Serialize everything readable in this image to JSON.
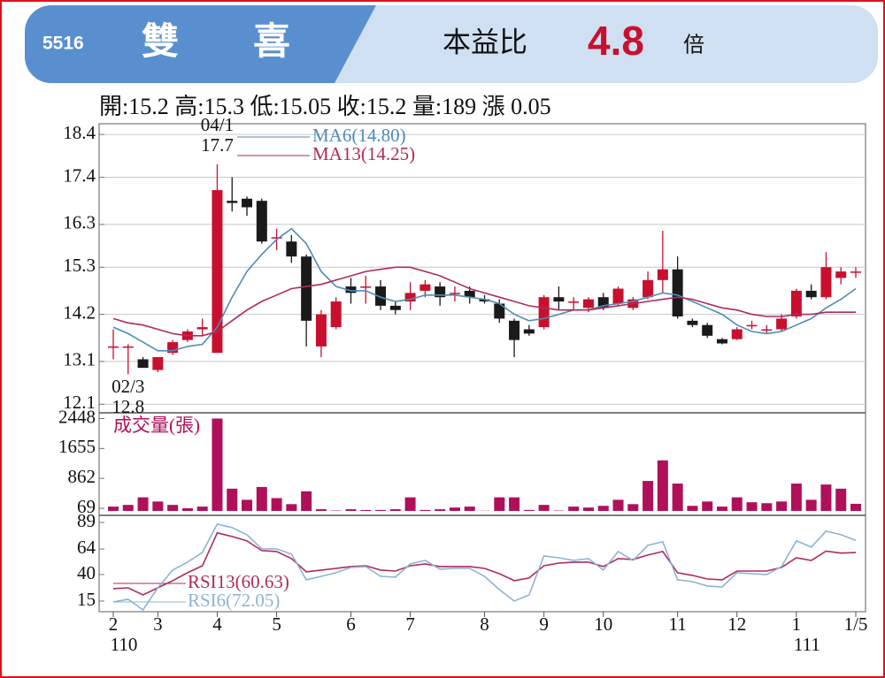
{
  "header": {
    "code": "5516",
    "name": "雙　　喜",
    "pe_label": "本益比",
    "pe_value": "4.8",
    "pe_unit": "倍"
  },
  "summary": "開:15.2 高:15.3 低:15.05 收:15.2 量:189 漲 0.05",
  "chart_data": [
    {
      "type": "candlestick",
      "up_color": "#c8102e",
      "down_color": "#1a1a1a",
      "open": [
        13.45,
        13.45,
        13.15,
        12.9,
        13.3,
        13.6,
        13.85,
        13.3,
        16.85,
        16.9,
        16.85,
        16.0,
        15.9,
        15.55,
        13.45,
        13.9,
        14.85,
        14.85,
        14.85,
        14.4,
        14.5,
        14.75,
        14.85,
        14.7,
        14.75,
        14.55,
        14.45,
        14.05,
        13.85,
        13.9,
        14.6,
        14.5,
        14.35,
        14.6,
        14.45,
        14.35,
        14.6,
        15.0,
        15.25,
        14.05,
        13.95,
        13.62,
        13.62,
        13.95,
        13.85,
        13.85,
        14.15,
        14.75,
        14.6,
        15.05,
        15.2
      ],
      "high": [
        13.85,
        13.5,
        13.2,
        13.2,
        13.6,
        13.85,
        14.1,
        17.7,
        17.4,
        16.95,
        16.9,
        16.2,
        16.05,
        15.6,
        14.3,
        14.6,
        15.05,
        15.1,
        15.0,
        14.5,
        14.95,
        15.0,
        14.95,
        14.85,
        14.85,
        14.65,
        14.55,
        14.1,
        13.95,
        14.65,
        14.85,
        14.6,
        14.6,
        14.7,
        14.85,
        14.6,
        15.2,
        16.15,
        15.55,
        14.1,
        14.0,
        13.65,
        13.9,
        14.05,
        13.95,
        14.2,
        14.8,
        14.9,
        15.65,
        15.3,
        15.3
      ],
      "low": [
        13.15,
        12.8,
        12.95,
        12.85,
        13.25,
        13.55,
        13.7,
        13.3,
        16.6,
        16.5,
        15.85,
        15.7,
        15.4,
        13.45,
        13.2,
        13.85,
        14.45,
        14.45,
        14.3,
        14.2,
        14.3,
        14.6,
        14.4,
        14.5,
        14.45,
        14.45,
        14.0,
        13.2,
        13.7,
        13.85,
        14.3,
        14.3,
        14.25,
        14.3,
        14.4,
        14.3,
        14.55,
        14.7,
        14.1,
        13.9,
        13.65,
        13.5,
        13.6,
        13.85,
        13.75,
        13.8,
        14.1,
        14.55,
        14.55,
        14.9,
        15.05
      ],
      "close": [
        13.45,
        13.45,
        12.95,
        13.2,
        13.55,
        13.8,
        13.9,
        17.1,
        16.8,
        16.7,
        15.9,
        16.0,
        15.55,
        14.05,
        14.2,
        14.5,
        14.7,
        14.85,
        14.4,
        14.3,
        14.7,
        14.9,
        14.6,
        14.7,
        14.6,
        14.5,
        14.1,
        13.6,
        13.75,
        14.6,
        14.5,
        14.5,
        14.55,
        14.35,
        14.8,
        14.55,
        15.0,
        15.25,
        14.15,
        13.95,
        13.7,
        13.52,
        13.85,
        13.95,
        13.85,
        14.1,
        14.75,
        14.6,
        15.3,
        15.2,
        15.2
      ],
      "series": [
        {
          "name": "MA6(14.80)",
          "color": "#4f8bb8",
          "values": [
            13.9,
            13.75,
            13.55,
            13.35,
            13.35,
            13.45,
            13.5,
            13.9,
            14.6,
            15.2,
            15.6,
            15.95,
            16.2,
            15.85,
            15.2,
            14.85,
            14.75,
            14.75,
            14.6,
            14.5,
            14.55,
            14.65,
            14.65,
            14.65,
            14.6,
            14.55,
            14.45,
            14.2,
            14.05,
            14.1,
            14.2,
            14.3,
            14.3,
            14.4,
            14.45,
            14.5,
            14.6,
            14.7,
            14.65,
            14.5,
            14.35,
            14.2,
            13.95,
            13.8,
            13.75,
            13.8,
            13.95,
            14.1,
            14.35,
            14.55,
            14.8
          ]
        },
        {
          "name": "MA13(14.25)",
          "color": "#b02a5a",
          "values": [
            14.1,
            14.0,
            13.95,
            13.85,
            13.75,
            13.7,
            13.7,
            13.8,
            14.05,
            14.3,
            14.5,
            14.65,
            14.8,
            14.85,
            14.9,
            15.0,
            15.1,
            15.2,
            15.25,
            15.3,
            15.3,
            15.2,
            15.1,
            14.95,
            14.8,
            14.7,
            14.6,
            14.5,
            14.4,
            14.35,
            14.3,
            14.3,
            14.3,
            14.35,
            14.4,
            14.45,
            14.5,
            14.55,
            14.6,
            14.55,
            14.45,
            14.35,
            14.3,
            14.2,
            14.15,
            14.15,
            14.2,
            14.2,
            14.25,
            14.25,
            14.25
          ]
        }
      ],
      "annotations": [
        {
          "date": "04/1",
          "value": 17.7,
          "index": 7
        },
        {
          "date": "02/3",
          "value": 12.8,
          "index": 1
        }
      ],
      "ylim": [
        11.9,
        18.65
      ],
      "yticks": [
        12.1,
        13.1,
        14.2,
        15.3,
        16.3,
        17.4,
        18.4
      ],
      "grid": true
    },
    {
      "type": "bar",
      "ylabel": "成交量(張)",
      "color": "#b0105a",
      "values": [
        115,
        160,
        360,
        250,
        160,
        70,
        115,
        2448,
        590,
        295,
        635,
        340,
        180,
        520,
        45,
        10,
        45,
        25,
        25,
        45,
        360,
        25,
        45,
        90,
        115,
        5,
        360,
        360,
        25,
        160,
        10,
        115,
        90,
        135,
        295,
        180,
        795,
        1340,
        725,
        135,
        250,
        115,
        360,
        230,
        205,
        250,
        725,
        295,
        700,
        590,
        189
      ],
      "ylim": [
        0,
        2600
      ],
      "yticks": [
        69,
        862,
        1655,
        2448
      ],
      "grid": false
    },
    {
      "type": "line",
      "categories": [
        "2",
        null,
        null,
        "3",
        null,
        null,
        null,
        "4",
        null,
        null,
        null,
        "5",
        null,
        null,
        null,
        null,
        "6",
        null,
        null,
        null,
        "7",
        null,
        null,
        null,
        null,
        "8",
        null,
        null,
        null,
        "9",
        null,
        null,
        null,
        "10",
        null,
        null,
        null,
        null,
        "11",
        null,
        null,
        null,
        "12",
        null,
        null,
        null,
        "1",
        null,
        null,
        null,
        "1/5"
      ],
      "category_sublabels": [
        "110",
        null,
        null,
        null,
        null,
        null,
        null,
        null,
        null,
        null,
        null,
        null,
        null,
        null,
        null,
        null,
        null,
        null,
        null,
        null,
        null,
        null,
        null,
        null,
        null,
        null,
        null,
        null,
        null,
        null,
        null,
        null,
        null,
        null,
        null,
        null,
        null,
        null,
        null,
        null,
        null,
        null,
        null,
        null,
        null,
        null,
        "111",
        null,
        null,
        null,
        null
      ],
      "series": [
        {
          "name": "RSI13(60.63)",
          "color": "#b02a5a",
          "values": [
            26.7,
            27.5,
            20.8,
            27.5,
            34.2,
            41.7,
            48.3,
            79.2,
            75.8,
            71.7,
            62.5,
            61.7,
            55,
            42.5,
            44.2,
            45.8,
            47.5,
            48.3,
            44.2,
            43.3,
            48.3,
            50,
            47.5,
            47.5,
            47.5,
            45.8,
            40.8,
            34.2,
            36.7,
            48.3,
            50.8,
            51.7,
            51.7,
            47.5,
            55,
            54.2,
            58.3,
            61.7,
            41.7,
            39.2,
            35.8,
            35,
            43.3,
            43.3,
            43.3,
            46.7,
            55.8,
            53.3,
            62,
            60.2,
            60.63
          ]
        },
        {
          "name": "RSI6(72.05)",
          "color": "#8db4d4",
          "values": [
            14.2,
            16.7,
            6.7,
            27.5,
            44.2,
            51.7,
            60.8,
            87.5,
            84.2,
            77.5,
            64.2,
            64.2,
            59.2,
            35,
            38.3,
            41.7,
            46.7,
            47.5,
            38.3,
            37.5,
            50,
            53.3,
            45,
            45.8,
            45.8,
            38.3,
            25.8,
            15,
            20.8,
            57.5,
            55.8,
            53.3,
            55,
            44.2,
            61.7,
            53.3,
            67.5,
            70.8,
            35,
            33.3,
            29.2,
            28.3,
            41.7,
            40.8,
            40,
            47.5,
            71.7,
            65.8,
            80.8,
            77.5,
            72.05
          ]
        }
      ],
      "ylim": [
        5,
        95.7
      ],
      "yticks": [
        15,
        40,
        64,
        89
      ],
      "grid": false
    }
  ]
}
